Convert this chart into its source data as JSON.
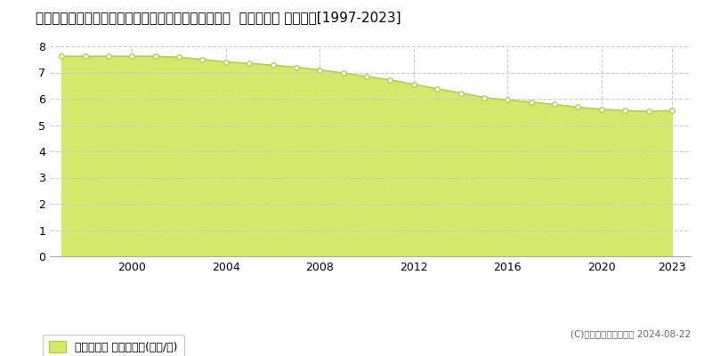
{
  "title": "宮崎県児湯郡高鍋町大字持田字正ケ井手１６１０番２  基準地価格 地価推移[1997-2023]",
  "years": [
    1997,
    1998,
    1999,
    2000,
    2001,
    2002,
    2003,
    2004,
    2005,
    2006,
    2007,
    2008,
    2009,
    2010,
    2011,
    2012,
    2013,
    2014,
    2015,
    2016,
    2017,
    2018,
    2019,
    2020,
    2021,
    2022,
    2023
  ],
  "values": [
    7.62,
    7.62,
    7.62,
    7.62,
    7.62,
    7.58,
    7.5,
    7.4,
    7.35,
    7.28,
    7.2,
    7.1,
    6.98,
    6.85,
    6.72,
    6.55,
    6.38,
    6.22,
    6.05,
    5.95,
    5.88,
    5.78,
    5.68,
    5.6,
    5.55,
    5.52,
    5.55
  ],
  "fill_color": "#d4e96b",
  "line_color": "#b8cc44",
  "marker_color": "#ffffff",
  "marker_edge_color": "#b8cc44",
  "background_color": "#ffffff",
  "grid_color": "#cccccc",
  "ylim": [
    0,
    8
  ],
  "yticks": [
    0,
    1,
    2,
    3,
    4,
    5,
    6,
    7,
    8
  ],
  "xticks": [
    2000,
    2004,
    2008,
    2012,
    2016,
    2020,
    2023
  ],
  "xlabel": "",
  "ylabel": "",
  "legend_label": "基準地価格 平均坪単価(万円/坪)",
  "copyright_text": "(C)土地価格ドットコム 2024-08-22",
  "title_fontsize": 11,
  "axis_fontsize": 9,
  "legend_fontsize": 9
}
